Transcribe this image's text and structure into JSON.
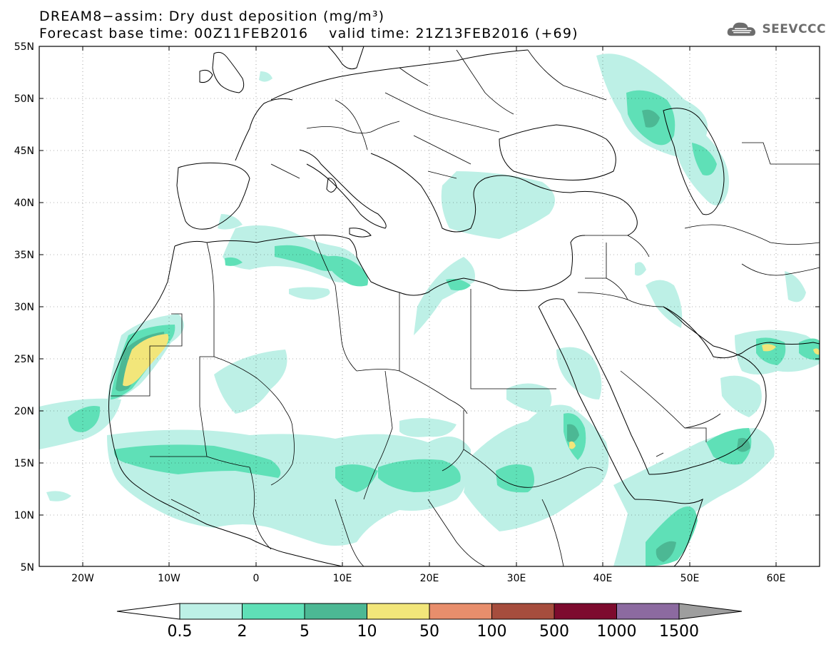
{
  "title": {
    "line1": "DREAM8−assim: Dry dust deposition (mg/m³)",
    "line2": "Forecast base time: 00Z11FEB2016    valid time: 21Z13FEB2016 (+69)"
  },
  "logo": {
    "text": "SEEVCCC",
    "icon": "cloud-logo-icon"
  },
  "map": {
    "lat_labels": [
      "55N",
      "50N",
      "45N",
      "40N",
      "35N",
      "30N",
      "25N",
      "20N",
      "15N",
      "10N",
      "5N"
    ],
    "lon_labels": [
      "20W",
      "10W",
      "0",
      "10E",
      "20E",
      "30E",
      "40E",
      "50E",
      "60E"
    ],
    "lat_range": [
      5,
      55
    ],
    "lon_range": [
      -25,
      65
    ]
  },
  "colorbar": {
    "labels": [
      "0.5",
      "2",
      "5",
      "10",
      "50",
      "100",
      "500",
      "1000",
      "1500"
    ],
    "colors": [
      "#bdf0e6",
      "#5fe0b7",
      "#4cb894",
      "#f2e67a",
      "#e88e6c",
      "#a64d3d",
      "#7d0b2e",
      "#8c6aa0",
      "#9e9e9e"
    ],
    "left_arrow_color": "#ffffff",
    "right_arrow_color": "#9e9e9e"
  }
}
